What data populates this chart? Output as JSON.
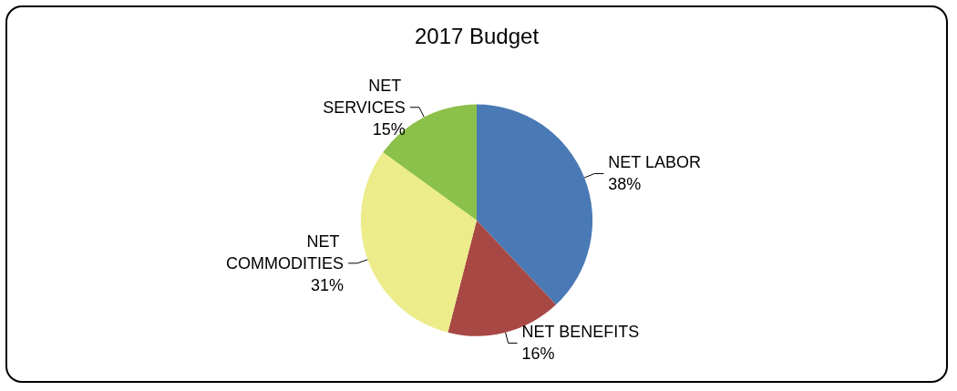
{
  "chart_data": {
    "type": "pie",
    "title": "2017 Budget",
    "categories": [
      "NET LABOR",
      "NET BENEFITS",
      "NET COMMODITIES",
      "NET SERVICES"
    ],
    "values": [
      38,
      16,
      31,
      15
    ],
    "value_labels": [
      "38%",
      "16%",
      "31%",
      "15%"
    ],
    "colors": [
      "#4a7ab5",
      "#a84844",
      "#ecec8a",
      "#8bc04a"
    ],
    "legend": false
  }
}
